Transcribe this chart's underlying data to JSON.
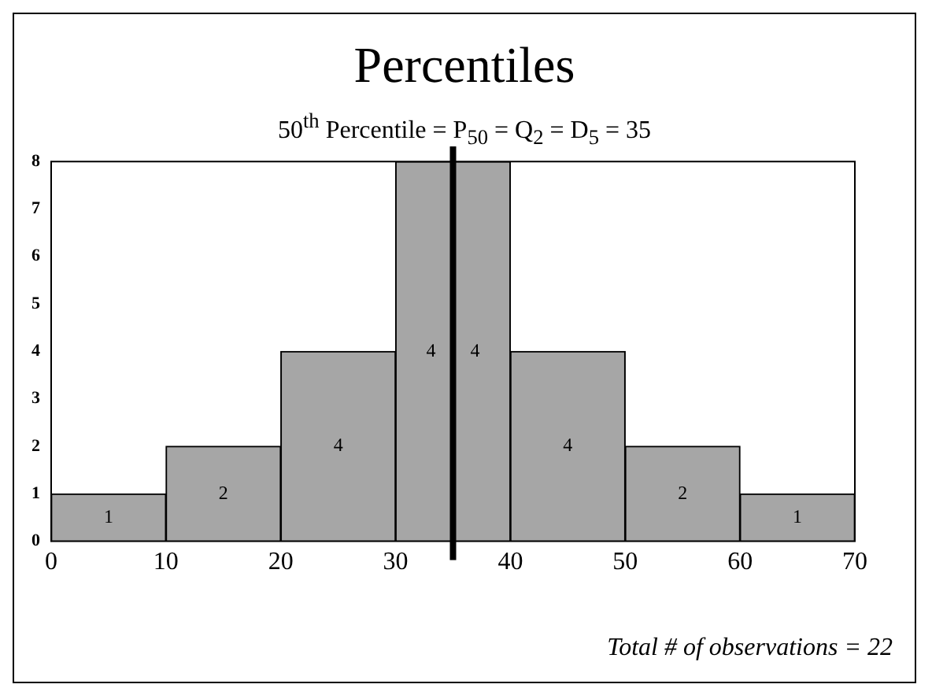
{
  "chart_data": {
    "type": "histogram",
    "title": "Percentiles",
    "bins": [
      0,
      10,
      20,
      30,
      40,
      50,
      60,
      70
    ],
    "values": [
      1,
      2,
      4,
      8,
      4,
      2,
      1
    ],
    "value_labels": [
      "1",
      "2",
      "4",
      null,
      "4",
      "2",
      "1"
    ],
    "color": "#a6a6a6",
    "xlim": [
      0,
      70
    ],
    "xticks": [
      0,
      10,
      20,
      30,
      40,
      50,
      60,
      70
    ],
    "ylim": [
      0,
      8
    ],
    "yticks": [
      0,
      1,
      2,
      3,
      4,
      5,
      6,
      7,
      8
    ],
    "grid": false,
    "legend": false,
    "ref_lines": [
      {
        "axis": "x",
        "value": 35,
        "label": "50$^{th}$ Percentile = P$_{50}$ = Q$_{2}$ = D$_{5}$ = 35",
        "color": "#000000"
      }
    ],
    "annotations": [
      "4",
      "4",
      "Total # of observations = 22"
    ]
  }
}
